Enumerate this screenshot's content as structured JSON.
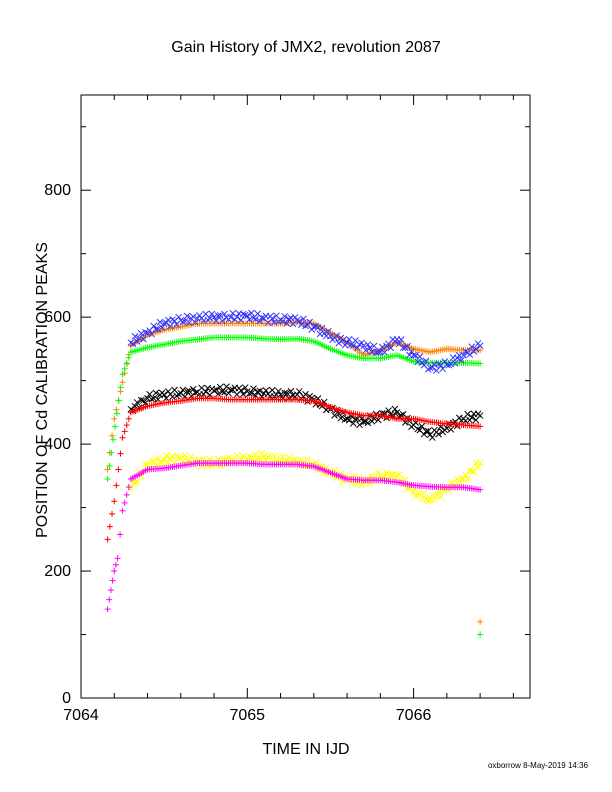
{
  "chart_data": {
    "type": "scatter",
    "title": "Gain History of JMX2, revolution 2087",
    "xlabel": "TIME IN IJD",
    "ylabel": "POSITION OF Cd CALIBRATION PEAKS",
    "xlim": [
      7064.0,
      7066.7
    ],
    "ylim": [
      0,
      950
    ],
    "x_ticks": [
      "7064",
      "7065",
      "7066"
    ],
    "x_tick_values": [
      7064,
      7065,
      7066
    ],
    "y_ticks": [
      "0",
      "200",
      "400",
      "600",
      "800"
    ],
    "y_tick_values": [
      0,
      200,
      400,
      600,
      800
    ],
    "grid": false,
    "legend": "none",
    "footer": "oxborrow  8-May-2019 14:36",
    "series": [
      {
        "color": "#ff8000",
        "marker": "+",
        "x": [
          7064.16,
          7064.2,
          7064.3,
          7064.4,
          7064.5,
          7064.6,
          7064.7,
          7064.8,
          7064.9,
          7065.0,
          7065.1,
          7065.2,
          7065.3,
          7065.4,
          7065.5,
          7065.6,
          7065.7,
          7065.8,
          7065.9,
          7066.0,
          7066.1,
          7066.2,
          7066.3,
          7066.4,
          7066.4
        ],
        "y": [
          360,
          440,
          555,
          572,
          580,
          585,
          590,
          590,
          590,
          590,
          590,
          590,
          592,
          590,
          575,
          560,
          540,
          548,
          560,
          550,
          545,
          550,
          548,
          548,
          120
        ]
      },
      {
        "color": "#00ff00",
        "marker": "+",
        "x": [
          7064.16,
          7064.25,
          7064.3,
          7064.4,
          7064.5,
          7064.6,
          7064.7,
          7064.8,
          7064.9,
          7065.0,
          7065.1,
          7065.2,
          7065.3,
          7065.4,
          7065.5,
          7065.6,
          7065.7,
          7065.8,
          7065.9,
          7066.0,
          7066.1,
          7066.2,
          7066.3,
          7066.4,
          7066.4
        ],
        "y": [
          345,
          510,
          545,
          552,
          557,
          562,
          565,
          568,
          568,
          568,
          566,
          565,
          566,
          562,
          550,
          540,
          535,
          535,
          540,
          530,
          528,
          528,
          528,
          527,
          100
        ]
      },
      {
        "color": "#3333ff",
        "marker": "x",
        "x": [
          7064.3,
          7064.4,
          7064.5,
          7064.6,
          7064.7,
          7064.8,
          7064.9,
          7065.0,
          7065.1,
          7065.2,
          7065.3,
          7065.4,
          7065.5,
          7065.6,
          7065.7,
          7065.8,
          7065.9,
          7066.0,
          7066.1,
          7066.2,
          7066.3,
          7066.4
        ],
        "y": [
          560,
          575,
          590,
          595,
          598,
          600,
          600,
          602,
          598,
          596,
          595,
          585,
          570,
          560,
          555,
          545,
          565,
          540,
          520,
          525,
          540,
          555
        ]
      },
      {
        "color": "#000000",
        "marker": "x",
        "x": [
          7064.3,
          7064.4,
          7064.5,
          7064.6,
          7064.7,
          7064.8,
          7064.9,
          7065.0,
          7065.1,
          7065.2,
          7065.3,
          7065.4,
          7065.5,
          7065.6,
          7065.7,
          7065.8,
          7065.9,
          7066.0,
          7066.1,
          7066.2,
          7066.3,
          7066.4
        ],
        "y": [
          455,
          472,
          478,
          480,
          482,
          484,
          485,
          483,
          480,
          478,
          478,
          470,
          455,
          440,
          435,
          445,
          450,
          430,
          415,
          425,
          440,
          445
        ]
      },
      {
        "color": "#ff0000",
        "marker": "+",
        "x": [
          7064.16,
          7064.2,
          7064.25,
          7064.3,
          7064.4,
          7064.5,
          7064.6,
          7064.7,
          7064.8,
          7064.9,
          7065.0,
          7065.1,
          7065.2,
          7065.3,
          7065.4,
          7065.5,
          7065.6,
          7065.7,
          7065.8,
          7065.9,
          7066.0,
          7066.1,
          7066.2,
          7066.3,
          7066.4
        ],
        "y": [
          250,
          310,
          410,
          450,
          460,
          465,
          468,
          472,
          472,
          470,
          470,
          470,
          470,
          470,
          468,
          458,
          450,
          445,
          445,
          440,
          440,
          435,
          432,
          430,
          428
        ]
      },
      {
        "color": "#ffff00",
        "marker": "x",
        "x": [
          7064.3,
          7064.4,
          7064.5,
          7064.6,
          7064.7,
          7064.8,
          7064.9,
          7065.0,
          7065.1,
          7065.2,
          7065.3,
          7065.4,
          7065.5,
          7065.6,
          7065.7,
          7065.8,
          7065.9,
          7066.0,
          7066.1,
          7066.2,
          7066.3,
          7066.4
        ],
        "y": [
          330,
          368,
          375,
          378,
          372,
          370,
          375,
          377,
          380,
          375,
          372,
          368,
          355,
          345,
          340,
          350,
          350,
          325,
          312,
          330,
          345,
          370
        ]
      },
      {
        "color": "#ff00ff",
        "marker": "+",
        "x": [
          7064.16,
          7064.18,
          7064.2,
          7064.22,
          7064.25,
          7064.3,
          7064.4,
          7064.5,
          7064.6,
          7064.7,
          7064.8,
          7064.9,
          7065.0,
          7065.1,
          7065.2,
          7065.3,
          7065.4,
          7065.5,
          7065.6,
          7065.7,
          7065.8,
          7065.9,
          7066.0,
          7066.1,
          7066.2,
          7066.3,
          7066.4
        ],
        "y": [
          140,
          170,
          200,
          220,
          295,
          345,
          360,
          362,
          366,
          370,
          370,
          370,
          370,
          368,
          368,
          368,
          365,
          355,
          345,
          343,
          343,
          340,
          335,
          333,
          332,
          332,
          328
        ]
      }
    ]
  }
}
